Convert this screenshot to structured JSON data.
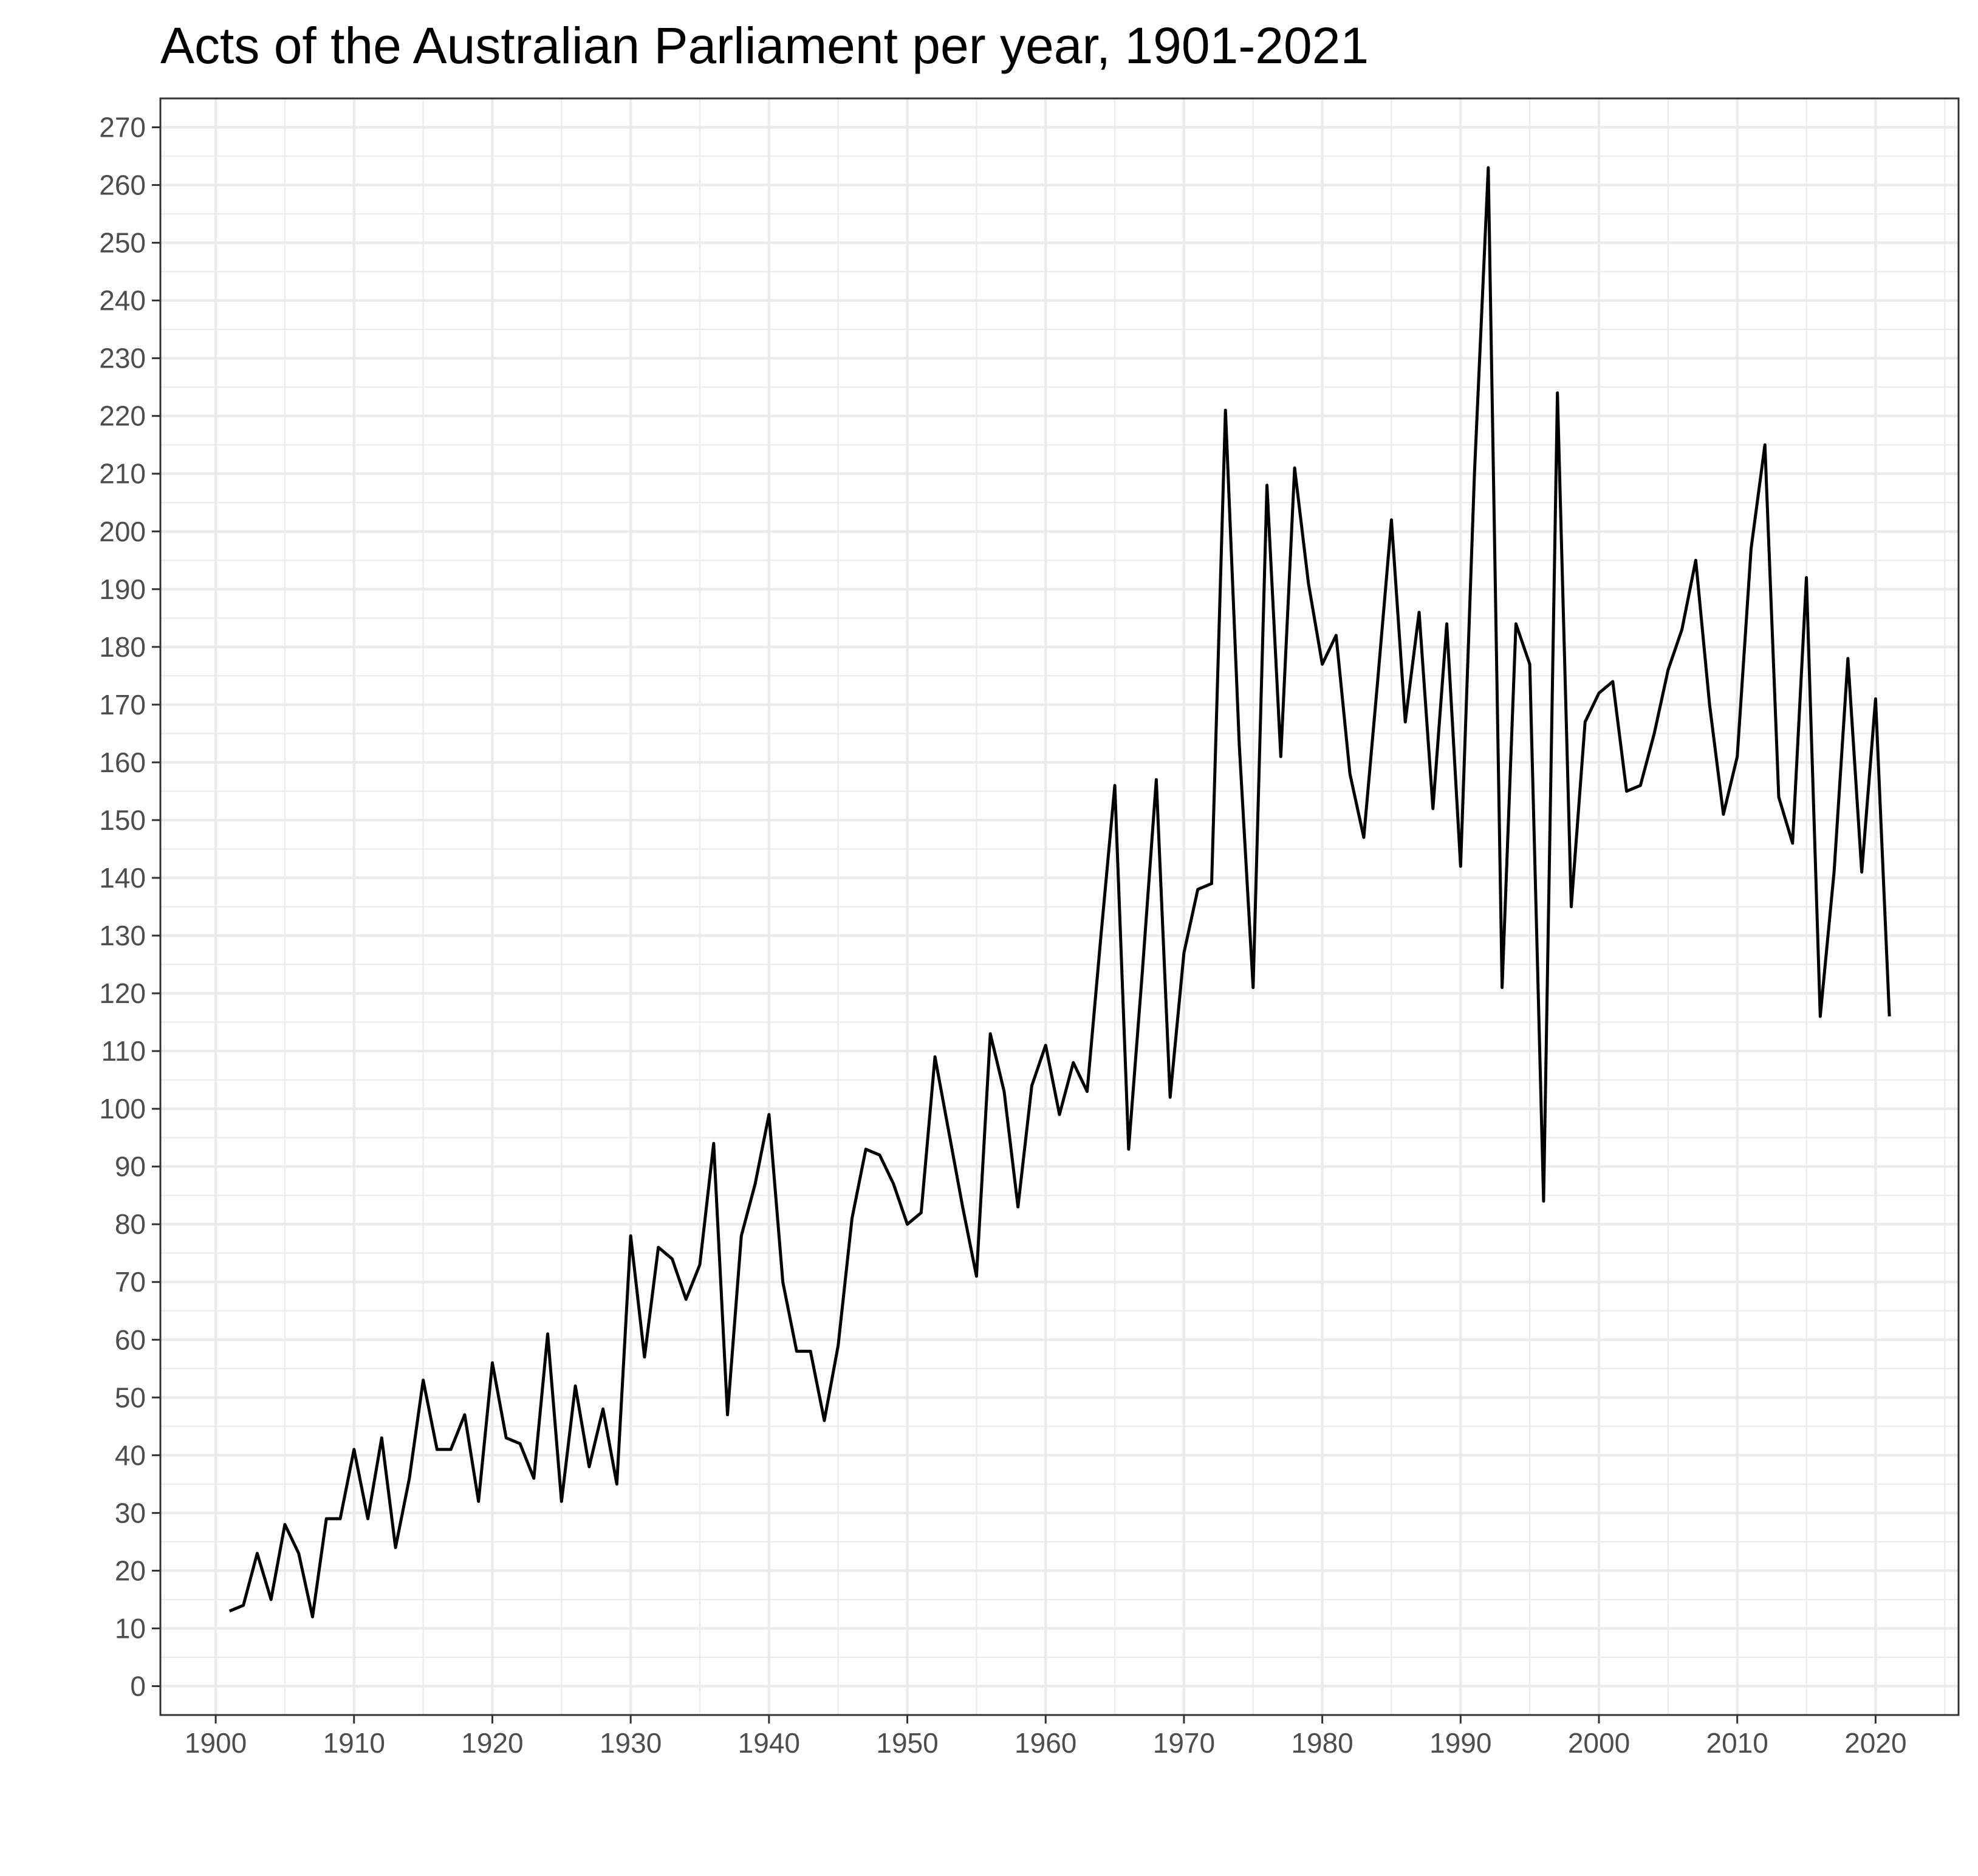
{
  "chart_data": {
    "type": "line",
    "title": "Acts of the Australian Parliament per year, 1901-2021",
    "xlabel": "",
    "ylabel": "",
    "xlim": [
      1896,
      2026
    ],
    "ylim": [
      -5,
      275
    ],
    "grid": true,
    "theme": "black-and-white",
    "x_ticks": [
      1900,
      1910,
      1920,
      1930,
      1940,
      1950,
      1960,
      1970,
      1980,
      1990,
      2000,
      2010,
      2020
    ],
    "y_ticks": [
      0,
      10,
      20,
      30,
      40,
      50,
      60,
      70,
      80,
      90,
      100,
      110,
      120,
      130,
      140,
      150,
      160,
      170,
      180,
      190,
      200,
      210,
      220,
      230,
      240,
      250,
      260,
      270
    ],
    "line_color": "#000000",
    "grid_color": "#ebebeb",
    "series": [
      {
        "x": [
          1901,
          1902,
          1903,
          1904,
          1905,
          1906,
          1907,
          1908,
          1909,
          1910,
          1911,
          1912,
          1913,
          1914,
          1915,
          1916,
          1917,
          1918,
          1919,
          1920,
          1921,
          1922,
          1923,
          1924,
          1925,
          1926,
          1927,
          1928,
          1929,
          1930,
          1931,
          1932,
          1933,
          1934,
          1935,
          1936,
          1937,
          1938,
          1939,
          1940,
          1941,
          1942,
          1943,
          1944,
          1945,
          1946,
          1947,
          1948,
          1949,
          1950,
          1951,
          1952,
          1953,
          1954,
          1955,
          1956,
          1957,
          1958,
          1959,
          1960,
          1961,
          1962,
          1963,
          1964,
          1965,
          1966,
          1967,
          1968,
          1969,
          1970,
          1971,
          1972,
          1973,
          1974,
          1975,
          1976,
          1977,
          1978,
          1979,
          1980,
          1981,
          1982,
          1983,
          1984,
          1985,
          1986,
          1987,
          1988,
          1989,
          1990,
          1991,
          1992,
          1993,
          1994,
          1995,
          1996,
          1997,
          1998,
          1999,
          2000,
          2001,
          2002,
          2003,
          2004,
          2005,
          2006,
          2007,
          2008,
          2009,
          2010,
          2011,
          2012,
          2013,
          2014,
          2015,
          2016,
          2017,
          2018,
          2019,
          2020,
          2021
        ],
        "values": [
          13,
          14,
          23,
          15,
          28,
          23,
          12,
          29,
          29,
          41,
          29,
          43,
          24,
          36,
          53,
          41,
          41,
          47,
          32,
          56,
          43,
          42,
          36,
          61,
          32,
          52,
          38,
          48,
          35,
          78,
          57,
          76,
          74,
          67,
          73,
          94,
          47,
          78,
          87,
          99,
          70,
          58,
          58,
          46,
          59,
          81,
          93,
          92,
          87,
          80,
          82,
          109,
          96,
          83,
          71,
          113,
          103,
          83,
          104,
          111,
          99,
          108,
          103,
          130,
          156,
          93,
          124,
          157,
          102,
          127,
          138,
          139,
          221,
          163,
          121,
          208,
          161,
          211,
          191,
          177,
          182,
          158,
          147,
          174,
          202,
          167,
          186,
          152,
          184,
          142,
          210,
          263,
          121,
          184,
          177,
          84,
          224,
          135,
          167,
          172,
          174,
          155,
          156,
          165,
          176,
          183,
          195,
          170,
          151,
          161,
          197,
          215,
          154,
          146,
          192,
          116,
          141,
          178,
          141,
          171,
          116
        ]
      }
    ]
  }
}
